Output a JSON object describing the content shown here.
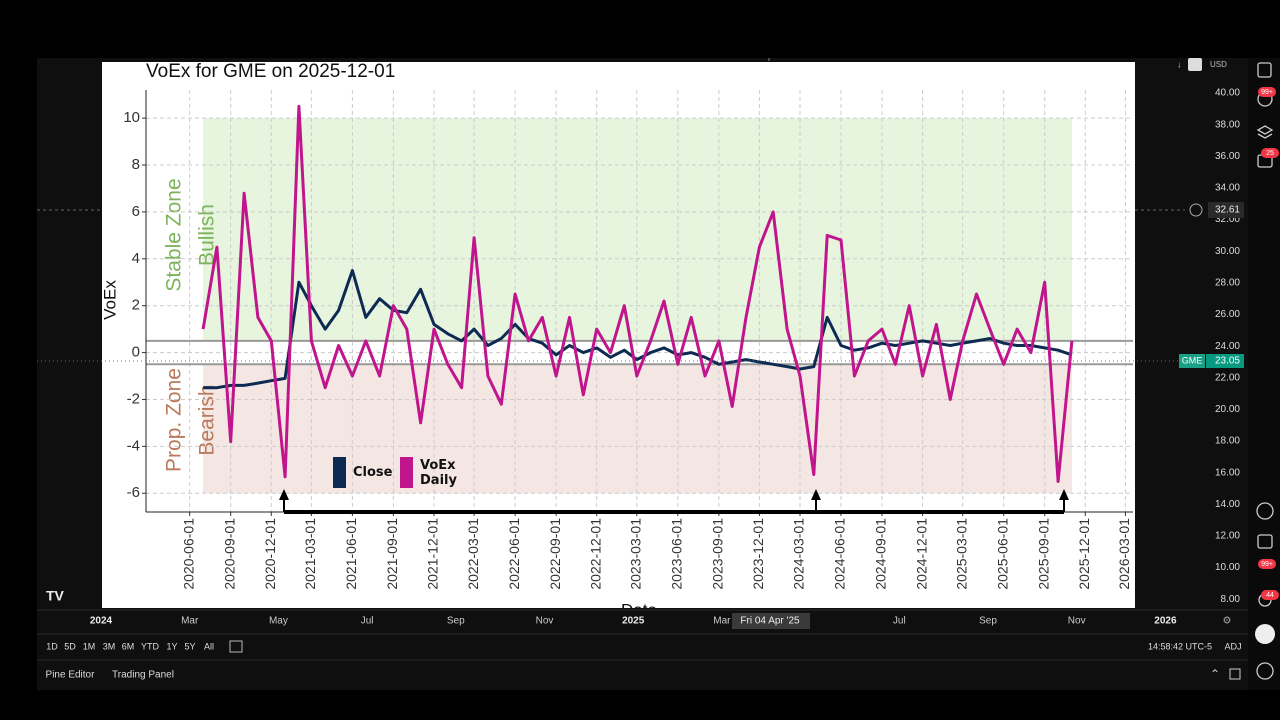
{
  "toolbar": {
    "currency": "USD"
  },
  "badges": [
    "99+",
    "25",
    "99+",
    "44"
  ],
  "price_axis": {
    "labels": [
      "40.00",
      "38.00",
      "36.00",
      "34.00",
      "32.00",
      "30.00",
      "28.00",
      "26.00",
      "24.00",
      "22.00",
      "20.00",
      "18.00",
      "16.00",
      "14.00",
      "12.00",
      "10.00",
      "8.00"
    ],
    "crosshair_price": "32.61",
    "symbol": "GME",
    "last_price": "23.05"
  },
  "time_axis": {
    "labels": [
      "2024",
      "Mar",
      "May",
      "Jul",
      "Sep",
      "Nov",
      "2025",
      "Mar",
      "Jul",
      "Sep",
      "Nov",
      "2026"
    ],
    "crosshair_date": "Fri 04 Apr '25"
  },
  "ranges": [
    "1D",
    "5D",
    "1M",
    "3M",
    "6M",
    "YTD",
    "1Y",
    "5Y",
    "All"
  ],
  "clock": "14:58:42 UTC-5",
  "adjust": "ADJ",
  "bottom_tabs": [
    "Pine Editor",
    "Trading Panel"
  ],
  "chart": {
    "type": "line",
    "title": "VoEx for GME on 2025-12-01",
    "x_label": "Date",
    "y_label": "VoEx",
    "xlim": [
      "2020-02-24",
      "2026-03-18"
    ],
    "xticks": [
      "2020-06-01",
      "2020-09-01",
      "2020-12-01",
      "2021-03-01",
      "2021-06-01",
      "2021-09-01",
      "2021-12-01",
      "2022-03-01",
      "2022-06-01",
      "2022-09-01",
      "2022-12-01",
      "2023-03-01",
      "2023-06-01",
      "2023-09-01",
      "2023-12-01",
      "2024-03-01",
      "2024-06-01",
      "2024-09-01",
      "2024-12-01",
      "2025-03-01",
      "2025-06-01",
      "2025-09-01",
      "2025-12-01",
      "2026-03-01"
    ],
    "ylim": [
      -6.8,
      11.2
    ],
    "yticks": [
      -6,
      -4,
      -2,
      0,
      2,
      4,
      6,
      8,
      10
    ],
    "grid": true,
    "zones": [
      {
        "labels": [
          "Stable Zone",
          "Bullish"
        ],
        "range": [
          0.5,
          10
        ],
        "color": "#e7f4de",
        "text_color": "#7db35c"
      },
      {
        "labels": [
          "Prop. Zone",
          "Bearish"
        ],
        "range": [
          -6,
          -0.5
        ],
        "color": "#f4e7e3",
        "text_color": "#b97a5c"
      }
    ],
    "thresholds": [
      0.5,
      -0.5
    ],
    "x": [
      "2020-07-01",
      "2020-08-01",
      "2020-09-01",
      "2020-10-01",
      "2020-11-01",
      "2020-12-01",
      "2021-01-01",
      "2021-02-01",
      "2021-03-01",
      "2021-04-01",
      "2021-05-01",
      "2021-06-01",
      "2021-07-01",
      "2021-08-01",
      "2021-09-01",
      "2021-10-01",
      "2021-11-01",
      "2021-12-01",
      "2022-01-01",
      "2022-02-01",
      "2022-03-01",
      "2022-04-01",
      "2022-05-01",
      "2022-06-01",
      "2022-07-01",
      "2022-08-01",
      "2022-09-01",
      "2022-10-01",
      "2022-11-01",
      "2022-12-01",
      "2023-01-01",
      "2023-02-01",
      "2023-03-01",
      "2023-04-01",
      "2023-05-01",
      "2023-06-01",
      "2023-07-01",
      "2023-08-01",
      "2023-09-01",
      "2023-10-01",
      "2023-11-01",
      "2023-12-01",
      "2024-01-01",
      "2024-02-01",
      "2024-03-01",
      "2024-04-01",
      "2024-05-01",
      "2024-06-01",
      "2024-07-01",
      "2024-08-01",
      "2024-09-01",
      "2024-10-01",
      "2024-11-01",
      "2024-12-01",
      "2025-01-01",
      "2025-02-01",
      "2025-03-01",
      "2025-04-01",
      "2025-05-01",
      "2025-06-01",
      "2025-07-01",
      "2025-08-01",
      "2025-09-01",
      "2025-10-01",
      "2025-11-01"
    ],
    "series": [
      {
        "name": "Close",
        "color": "#0d2b52",
        "values": [
          -1.5,
          -1.5,
          -1.4,
          -1.4,
          -1.3,
          -1.2,
          -1.1,
          3.0,
          2.0,
          1.0,
          1.8,
          3.5,
          1.5,
          2.3,
          1.8,
          1.7,
          2.7,
          1.2,
          0.8,
          0.5,
          1.0,
          0.3,
          0.6,
          1.2,
          0.6,
          0.4,
          -0.1,
          0.3,
          0.0,
          0.2,
          -0.2,
          0.1,
          -0.3,
          0.0,
          0.2,
          -0.1,
          0.0,
          -0.2,
          -0.5,
          -0.4,
          -0.3,
          -0.4,
          -0.5,
          -0.6,
          -0.7,
          -0.6,
          1.5,
          0.3,
          0.1,
          0.2,
          0.4,
          0.3,
          0.4,
          0.5,
          0.4,
          0.3,
          0.4,
          0.5,
          0.6,
          0.4,
          0.3,
          0.3,
          0.2,
          0.1,
          -0.1
        ]
      },
      {
        "name": "VoEx Daily",
        "color": "#c0158c",
        "values": [
          1,
          4.5,
          -3.8,
          6.8,
          1.5,
          0.5,
          -5.3,
          10.5,
          0.5,
          -1.5,
          0.3,
          -1,
          0.5,
          -1,
          2,
          1,
          -3,
          1,
          -0.5,
          -1.5,
          4.9,
          -1,
          -2.2,
          2.5,
          0.5,
          1.5,
          -1,
          1.5,
          -1.8,
          1,
          0,
          2,
          -1,
          0.5,
          2.2,
          -0.5,
          1.5,
          -1,
          0.5,
          -2.3,
          1.5,
          4.5,
          6,
          1,
          -1,
          -5.2,
          5,
          4.8,
          -1,
          0.5,
          1,
          -0.5,
          2,
          -1,
          1.2,
          -2,
          0.5,
          2.5,
          1,
          -0.5,
          1,
          0,
          3,
          -5.5,
          0.5
        ]
      }
    ]
  }
}
